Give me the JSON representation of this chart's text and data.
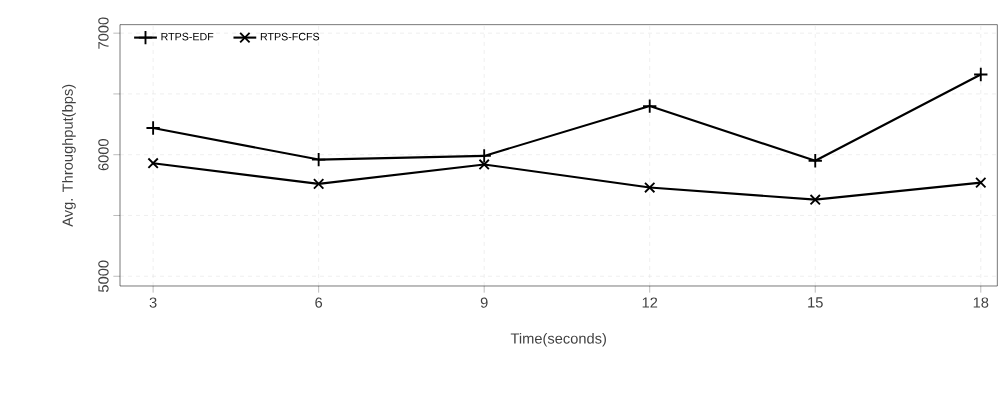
{
  "chart_data": {
    "type": "line",
    "xlabel": "Time(seconds)",
    "ylabel": "Avg. Throughput(bps)",
    "x": [
      3,
      6,
      9,
      12,
      15,
      18
    ],
    "series": [
      {
        "name": "RTPS-EDF",
        "color": "#000000",
        "marker": "cross",
        "values": [
          6220,
          5960,
          5990,
          6400,
          5950,
          6660
        ]
      },
      {
        "name": "RTPS-FCFS",
        "color": "#000000",
        "marker": "cross",
        "values": [
          5930,
          5760,
          5920,
          5730,
          5630,
          5770
        ]
      }
    ],
    "xlim": [
      2.4,
      18.3
    ],
    "ylim": [
      4920,
      7070
    ],
    "xticks": [
      3,
      6,
      9,
      12,
      15,
      18
    ],
    "yticks": [
      5000,
      {
        "value": 5500,
        "label": null
      },
      6000,
      {
        "value": 6500,
        "label": null
      },
      7000
    ],
    "grid": true,
    "legend": "top left",
    "line_style": "solid"
  }
}
